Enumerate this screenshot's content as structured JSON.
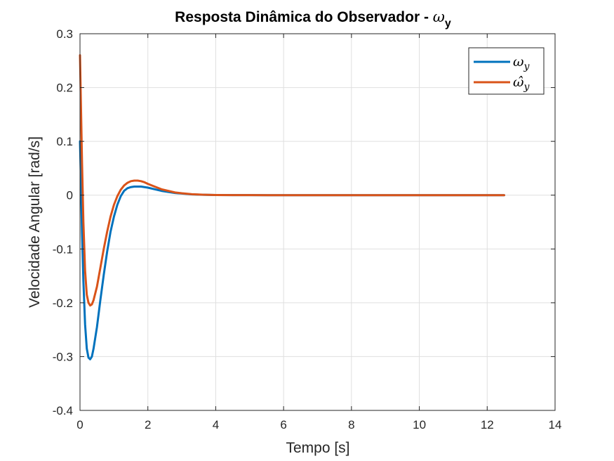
{
  "chart_data": {
    "type": "line",
    "title": "Resposta Dinâmica do Observador - ",
    "title_symbol": "ω",
    "title_subscript": "y",
    "xlabel": "Tempo [s]",
    "ylabel": "Velocidade Angular [rad/s]",
    "xlim": [
      0,
      14
    ],
    "ylim": [
      -0.4,
      0.3
    ],
    "xticks": [
      0,
      2,
      4,
      6,
      8,
      10,
      12,
      14
    ],
    "xtick_labels": [
      "0",
      "2",
      "4",
      "6",
      "8",
      "10",
      "12",
      "14"
    ],
    "yticks": [
      0.3,
      0.2,
      0.1,
      0,
      -0.1,
      -0.2,
      -0.3,
      -0.4
    ],
    "ytick_labels": [
      "0.3",
      "0.2",
      "0.1",
      "0",
      "-0.1",
      "-0.2",
      "-0.3",
      "-0.4"
    ],
    "grid": true,
    "legend_position": "top-right",
    "series": [
      {
        "name": "ω_y",
        "legend_symbol": "ω",
        "legend_sub": "y",
        "color": "#0072BD",
        "x": [
          0,
          0.03,
          0.06,
          0.1,
          0.15,
          0.2,
          0.25,
          0.3,
          0.35,
          0.4,
          0.5,
          0.6,
          0.7,
          0.8,
          0.9,
          1.0,
          1.1,
          1.2,
          1.3,
          1.4,
          1.5,
          1.6,
          1.7,
          1.8,
          1.9,
          2.0,
          2.2,
          2.4,
          2.6,
          2.8,
          3.0,
          3.3,
          3.6,
          4.0,
          4.5,
          5.0,
          6.0,
          8.0,
          10.0,
          12.5
        ],
        "y": [
          0.1,
          0.02,
          -0.07,
          -0.16,
          -0.24,
          -0.285,
          -0.302,
          -0.305,
          -0.3,
          -0.285,
          -0.245,
          -0.195,
          -0.148,
          -0.105,
          -0.068,
          -0.04,
          -0.018,
          -0.002,
          0.008,
          0.013,
          0.015,
          0.016,
          0.016,
          0.016,
          0.015,
          0.014,
          0.011,
          0.008,
          0.006,
          0.004,
          0.003,
          0.0015,
          0.0008,
          0.0003,
          0.0001,
          4e-05,
          0,
          0,
          0,
          0
        ]
      },
      {
        "name": "ω̂_y",
        "legend_symbol": "ω̂",
        "legend_sub": "y",
        "color": "#D95319",
        "x": [
          0,
          0.03,
          0.06,
          0.1,
          0.15,
          0.2,
          0.25,
          0.3,
          0.35,
          0.4,
          0.5,
          0.6,
          0.7,
          0.8,
          0.9,
          1.0,
          1.1,
          1.2,
          1.3,
          1.4,
          1.5,
          1.6,
          1.7,
          1.8,
          1.9,
          2.0,
          2.2,
          2.4,
          2.6,
          2.8,
          3.0,
          3.3,
          3.6,
          4.0,
          4.5,
          5.0,
          6.0,
          8.0,
          10.0,
          12.5
        ],
        "y": [
          0.26,
          0.16,
          0.06,
          -0.05,
          -0.14,
          -0.185,
          -0.2,
          -0.205,
          -0.203,
          -0.195,
          -0.17,
          -0.135,
          -0.1,
          -0.068,
          -0.04,
          -0.018,
          -0.002,
          0.01,
          0.018,
          0.023,
          0.026,
          0.027,
          0.027,
          0.026,
          0.024,
          0.021,
          0.016,
          0.011,
          0.008,
          0.005,
          0.0035,
          0.0018,
          0.0009,
          0.0003,
          0.0001,
          4e-05,
          0,
          0,
          0,
          0
        ]
      }
    ]
  }
}
